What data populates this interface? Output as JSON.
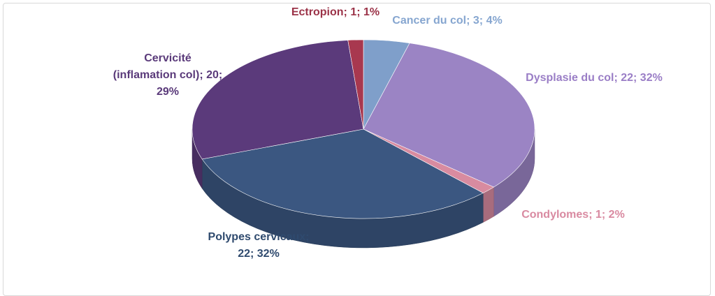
{
  "chart_data": {
    "type": "pie3d",
    "categories": [
      "Cancer du col",
      "Dysplasie du col",
      "Condylomes",
      "Polypes cervicaux",
      "Cervicité (inflamation col)",
      "Ectropion"
    ],
    "values": [
      3,
      22,
      1,
      22,
      20,
      1
    ],
    "percent_labels": [
      "4%",
      "32%",
      "2%",
      "32%",
      "29%",
      "1%"
    ],
    "label_separator": "; ",
    "colors": [
      "#7f9fca",
      "#9b84c4",
      "#d88ba0",
      "#3b5781",
      "#5b3a7b",
      "#a8384f"
    ],
    "label_colors": [
      "#86a6d0",
      "#9a7ec6",
      "#d98aa1",
      "#2f4a6e",
      "#5a3a7a",
      "#9b3348"
    ]
  }
}
